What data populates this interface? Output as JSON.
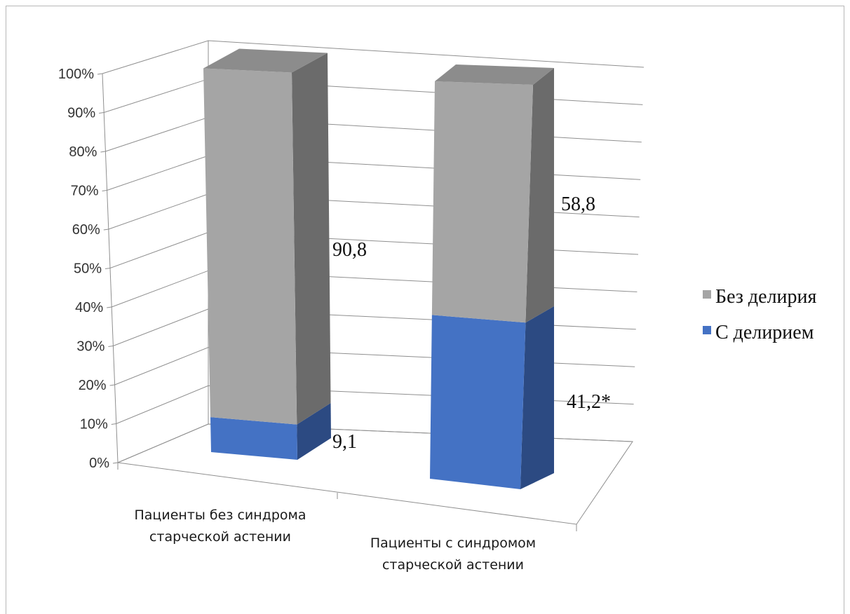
{
  "chart_data": {
    "type": "bar",
    "stacked": true,
    "three_d": true,
    "categories": [
      [
        "Пациенты без синдрома",
        "старческой астении"
      ],
      [
        "Пациенты с синдромом",
        "старческой астении"
      ]
    ],
    "series": [
      {
        "name": "С делирием",
        "values": [
          9.1,
          41.2
        ],
        "labels": [
          "9,1",
          "41,2*"
        ],
        "color": "#4472c4",
        "side": "#2c4a82",
        "top": "#5b86cf"
      },
      {
        "name": "Без делирия",
        "values": [
          90.8,
          58.8
        ],
        "labels": [
          "90,8",
          "58,8"
        ],
        "color": "#a5a5a5",
        "side": "#6b6b6b",
        "top": "#8c8c8c"
      }
    ],
    "yticks": [
      "0%",
      "10%",
      "20%",
      "30%",
      "40%",
      "50%",
      "60%",
      "70%",
      "80%",
      "90%",
      "100%"
    ],
    "ylim": [
      0,
      100
    ],
    "grid": true,
    "legend_position": "right",
    "legend_order": [
      "Без делирия",
      "С делирием"
    ]
  }
}
